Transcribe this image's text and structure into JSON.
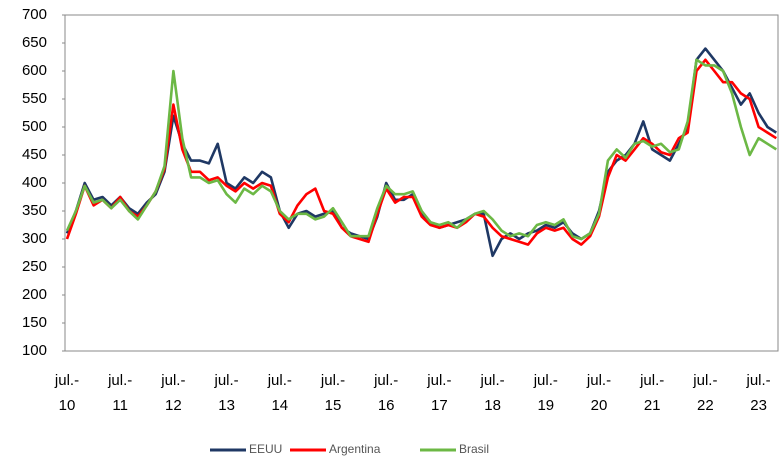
{
  "chart_data": {
    "type": "line",
    "categories": [
      "jul.- 10",
      null,
      null,
      null,
      null,
      null,
      "jul.- 11",
      null,
      null,
      null,
      null,
      null,
      "jul.- 12",
      null,
      null,
      null,
      null,
      null,
      "jul.- 13",
      null,
      null,
      null,
      null,
      null,
      "jul.- 14",
      null,
      null,
      null,
      null,
      null,
      "jul.- 15",
      null,
      null,
      null,
      null,
      null,
      "jul.- 16",
      null,
      null,
      null,
      null,
      null,
      "jul.- 17",
      null,
      null,
      null,
      null,
      null,
      "jul.- 18",
      null,
      null,
      null,
      null,
      null,
      "jul.- 19",
      null,
      null,
      null,
      null,
      null,
      "jul.- 20",
      null,
      null,
      null,
      null,
      null,
      "jul.- 21",
      null,
      null,
      null,
      null,
      null,
      "jul.- 22",
      null,
      null,
      null,
      null,
      null,
      "jul.- 23",
      null,
      null
    ],
    "series": [
      {
        "name": "EEUU",
        "color": "#1f3864",
        "values": [
          310,
          350,
          400,
          370,
          375,
          360,
          375,
          355,
          345,
          365,
          380,
          420,
          520,
          470,
          440,
          440,
          435,
          470,
          400,
          390,
          410,
          400,
          420,
          410,
          350,
          320,
          345,
          350,
          340,
          345,
          350,
          320,
          310,
          305,
          300,
          340,
          400,
          370,
          370,
          380,
          345,
          330,
          320,
          325,
          330,
          335,
          345,
          345,
          270,
          300,
          310,
          300,
          310,
          315,
          325,
          320,
          330,
          310,
          300,
          310,
          350,
          420,
          440,
          450,
          470,
          510,
          460,
          450,
          440,
          470,
          500,
          620,
          640,
          620,
          600,
          570,
          540,
          560,
          525,
          500,
          490
        ]
      },
      {
        "name": "Argentina",
        "color": "#ff0000",
        "values": [
          300,
          345,
          395,
          360,
          370,
          355,
          375,
          350,
          340,
          360,
          385,
          425,
          540,
          460,
          420,
          420,
          405,
          410,
          395,
          385,
          400,
          390,
          400,
          395,
          345,
          330,
          360,
          380,
          390,
          350,
          345,
          320,
          305,
          300,
          295,
          345,
          390,
          365,
          375,
          375,
          340,
          325,
          320,
          325,
          320,
          330,
          345,
          340,
          320,
          305,
          300,
          295,
          290,
          310,
          320,
          315,
          320,
          300,
          290,
          305,
          340,
          410,
          450,
          440,
          460,
          480,
          470,
          455,
          450,
          480,
          490,
          600,
          620,
          600,
          580,
          580,
          560,
          550,
          500,
          490,
          480
        ]
      },
      {
        "name": "Brasil",
        "color": "#6cb845",
        "values": [
          315,
          350,
          395,
          365,
          370,
          355,
          370,
          350,
          335,
          360,
          385,
          430,
          600,
          480,
          410,
          410,
          400,
          405,
          380,
          365,
          390,
          380,
          395,
          385,
          350,
          335,
          345,
          345,
          335,
          340,
          355,
          330,
          305,
          305,
          305,
          355,
          395,
          380,
          380,
          385,
          350,
          330,
          325,
          330,
          320,
          335,
          345,
          350,
          335,
          315,
          305,
          310,
          305,
          325,
          330,
          325,
          335,
          305,
          300,
          310,
          345,
          440,
          460,
          445,
          470,
          475,
          465,
          470,
          455,
          460,
          510,
          620,
          610,
          610,
          600,
          560,
          500,
          450,
          480,
          470,
          460
        ]
      }
    ],
    "ylim": [
      100,
      700
    ],
    "yticks": [
      100,
      150,
      200,
      250,
      300,
      350,
      400,
      450,
      500,
      550,
      600,
      650,
      700
    ]
  }
}
